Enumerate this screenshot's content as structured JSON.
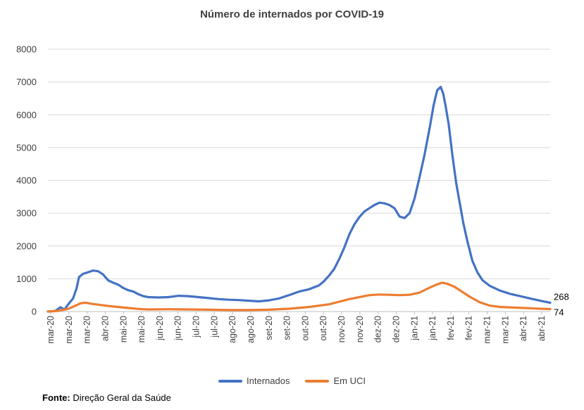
{
  "chart_data": {
    "type": "line",
    "title": "Número de internados por COVID-19",
    "xlabel": "",
    "ylabel": "",
    "ylim": [
      0,
      8000
    ],
    "yticks": [
      0,
      1000,
      2000,
      3000,
      4000,
      5000,
      6000,
      7000,
      8000
    ],
    "x_tick_labels": [
      "mar-20",
      "mar-20",
      "mar-20",
      "abr-20",
      "mai-20",
      "mai-20",
      "jun-20",
      "jun-20",
      "jul-20",
      "jul-20",
      "ago-20",
      "ago-20",
      "set-20",
      "set-20",
      "out-20",
      "out-20",
      "nov-20",
      "nov-20",
      "dez-20",
      "dez-20",
      "jan-21",
      "jan-21",
      "fev-21",
      "fev-21",
      "mar-21",
      "mar-21",
      "abr-21",
      "abr-21"
    ],
    "x_index_range": [
      0,
      100
    ],
    "series": [
      {
        "name": "Internados",
        "color": "#4472C4",
        "end_label": "268",
        "points": [
          [
            0,
            0
          ],
          [
            1.5,
            20
          ],
          [
            2.5,
            130
          ],
          [
            3.3,
            60
          ],
          [
            4.2,
            250
          ],
          [
            5,
            400
          ],
          [
            5.7,
            700
          ],
          [
            6.2,
            1050
          ],
          [
            7,
            1150
          ],
          [
            8,
            1200
          ],
          [
            9,
            1250
          ],
          [
            10,
            1230
          ],
          [
            11,
            1130
          ],
          [
            12,
            950
          ],
          [
            13,
            880
          ],
          [
            14,
            820
          ],
          [
            15,
            720
          ],
          [
            16,
            650
          ],
          [
            17,
            610
          ],
          [
            18,
            530
          ],
          [
            19,
            470
          ],
          [
            20,
            440
          ],
          [
            22,
            430
          ],
          [
            24,
            440
          ],
          [
            26,
            480
          ],
          [
            28,
            470
          ],
          [
            30,
            440
          ],
          [
            32,
            410
          ],
          [
            34,
            380
          ],
          [
            36,
            360
          ],
          [
            38,
            350
          ],
          [
            40,
            330
          ],
          [
            42,
            310
          ],
          [
            44,
            340
          ],
          [
            46,
            400
          ],
          [
            48,
            500
          ],
          [
            50,
            610
          ],
          [
            52,
            680
          ],
          [
            54,
            800
          ],
          [
            55,
            930
          ],
          [
            56,
            1100
          ],
          [
            57,
            1300
          ],
          [
            58,
            1600
          ],
          [
            59,
            1950
          ],
          [
            60,
            2350
          ],
          [
            61,
            2650
          ],
          [
            62,
            2880
          ],
          [
            63,
            3050
          ],
          [
            64,
            3150
          ],
          [
            65,
            3250
          ],
          [
            66,
            3320
          ],
          [
            67,
            3300
          ],
          [
            68,
            3250
          ],
          [
            69,
            3150
          ],
          [
            70,
            2900
          ],
          [
            71,
            2850
          ],
          [
            72,
            3000
          ],
          [
            73,
            3450
          ],
          [
            74,
            4100
          ],
          [
            75,
            4800
          ],
          [
            76,
            5600
          ],
          [
            76.8,
            6300
          ],
          [
            77.5,
            6750
          ],
          [
            78.2,
            6850
          ],
          [
            78.7,
            6650
          ],
          [
            79.2,
            6250
          ],
          [
            79.8,
            5700
          ],
          [
            80.5,
            4800
          ],
          [
            81.3,
            3900
          ],
          [
            82,
            3300
          ],
          [
            82.7,
            2700
          ],
          [
            83.5,
            2150
          ],
          [
            84.5,
            1550
          ],
          [
            85.5,
            1200
          ],
          [
            86.5,
            960
          ],
          [
            88,
            780
          ],
          [
            90,
            640
          ],
          [
            92,
            540
          ],
          [
            94,
            470
          ],
          [
            96,
            400
          ],
          [
            98,
            330
          ],
          [
            100,
            268
          ]
        ]
      },
      {
        "name": "Em UCI",
        "color": "#ED7D31",
        "end_label": "74",
        "points": [
          [
            0,
            0
          ],
          [
            2,
            20
          ],
          [
            4,
            80
          ],
          [
            5.5,
            180
          ],
          [
            6.5,
            250
          ],
          [
            7.5,
            270
          ],
          [
            8.5,
            240
          ],
          [
            10,
            210
          ],
          [
            12,
            170
          ],
          [
            14,
            140
          ],
          [
            16,
            110
          ],
          [
            18,
            80
          ],
          [
            20,
            65
          ],
          [
            24,
            70
          ],
          [
            28,
            65
          ],
          [
            32,
            55
          ],
          [
            36,
            45
          ],
          [
            40,
            45
          ],
          [
            44,
            55
          ],
          [
            48,
            85
          ],
          [
            52,
            140
          ],
          [
            56,
            220
          ],
          [
            58,
            300
          ],
          [
            60,
            380
          ],
          [
            62,
            440
          ],
          [
            64,
            500
          ],
          [
            66,
            520
          ],
          [
            68,
            510
          ],
          [
            70,
            500
          ],
          [
            72,
            510
          ],
          [
            74,
            580
          ],
          [
            76,
            730
          ],
          [
            77.5,
            830
          ],
          [
            78.5,
            880
          ],
          [
            79.5,
            850
          ],
          [
            81,
            750
          ],
          [
            82.5,
            600
          ],
          [
            84,
            450
          ],
          [
            86,
            280
          ],
          [
            88,
            180
          ],
          [
            90,
            140
          ],
          [
            93,
            120
          ],
          [
            96,
            100
          ],
          [
            98,
            85
          ],
          [
            100,
            74
          ]
        ]
      }
    ]
  },
  "source": {
    "label": "Fonte:",
    "text": "Direção Geral da Saúde"
  }
}
